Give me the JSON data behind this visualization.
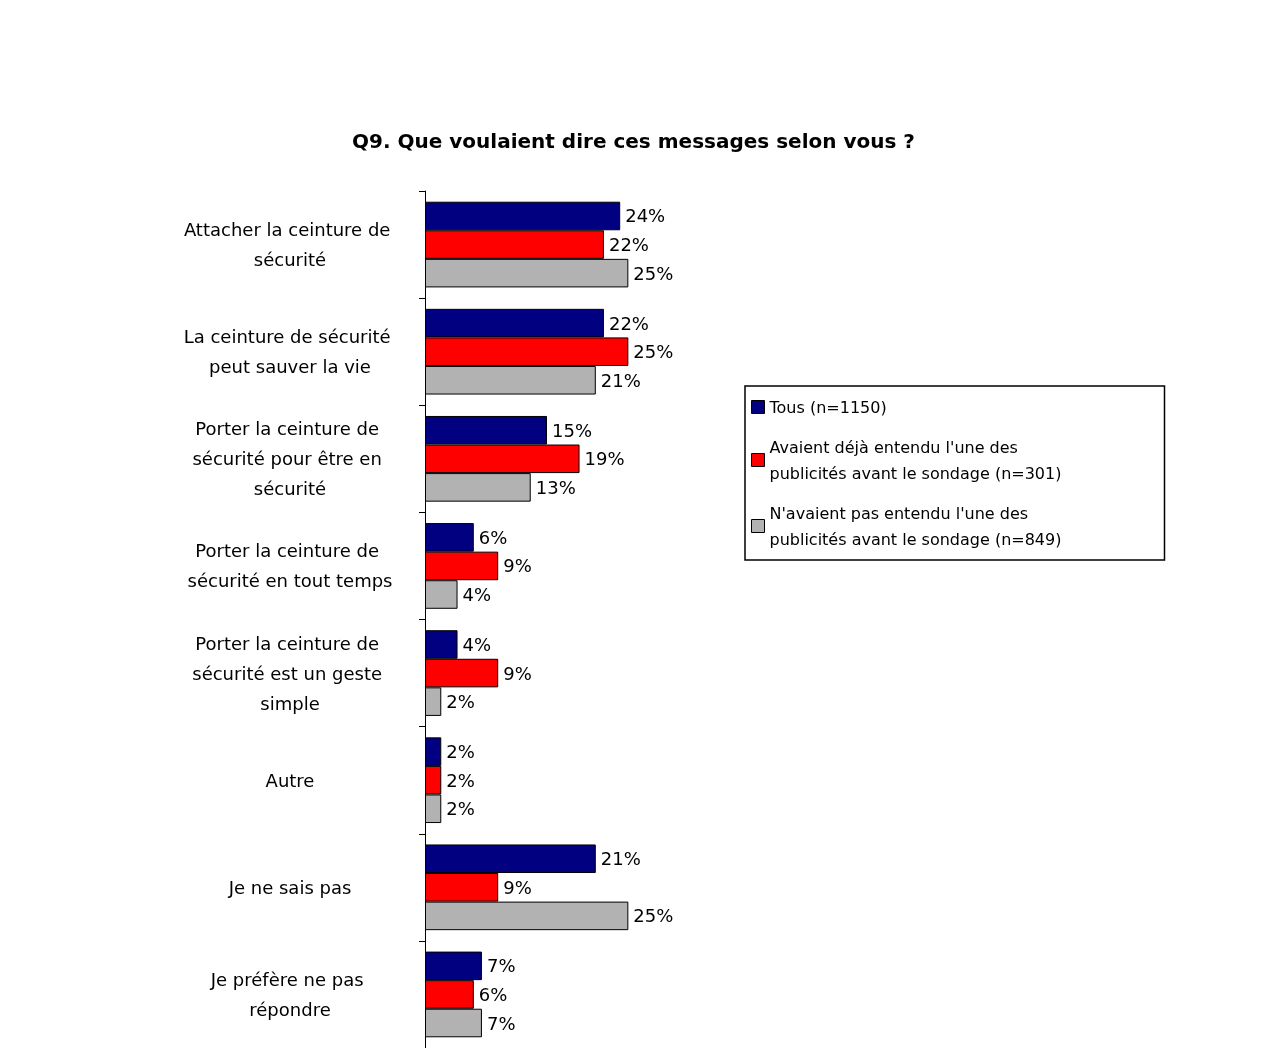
{
  "chart_data": {
    "type": "bar",
    "orientation": "horizontal",
    "title": "Q9. Que voulaient dire ces messages selon vous ?",
    "categories": [
      "Attacher la ceinture de sécurité",
      "La ceinture de sécurité peut sauver la vie",
      "Porter la ceinture de sécurité pour être en sécurité",
      "Porter la ceinture de sécurité en tout temps",
      "Porter la ceinture de sécurité est un geste simple",
      "Autre",
      "Je ne sais pas",
      "Je préfère ne pas répondre"
    ],
    "series": [
      {
        "name": "Tous (n=1150)",
        "color": "#000080",
        "values": [
          24,
          22,
          15,
          6,
          4,
          2,
          21,
          7
        ],
        "value_labels": [
          "24%",
          "22%",
          "15%",
          "6%",
          "4%",
          "2%",
          "21%",
          "7%"
        ]
      },
      {
        "name": "Avaient déjà entendu l'une des publicités avant le sondage (n=301)",
        "color": "#ff0000",
        "values": [
          22,
          25,
          19,
          9,
          9,
          2,
          9,
          6
        ],
        "value_labels": [
          "22%",
          "25%",
          "19%",
          "9%",
          "9%",
          "2%",
          "9%",
          "6%"
        ]
      },
      {
        "name": "N'avaient pas entendu l'une des publicités avant le sondage (n=849)",
        "color": "#b2b2b2",
        "values": [
          25,
          21,
          13,
          4,
          2,
          2,
          25,
          7
        ],
        "value_labels": [
          "25%",
          "21%",
          "13%",
          "4%",
          "2%",
          "2%",
          "25%",
          "7%"
        ]
      }
    ],
    "legend": "right"
  }
}
